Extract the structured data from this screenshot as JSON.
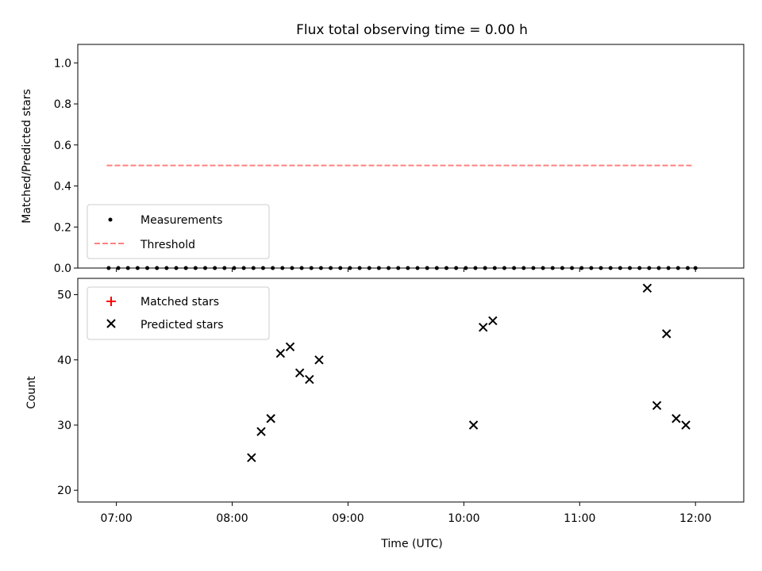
{
  "chart_data": [
    {
      "type": "scatter",
      "title": "Flux total observing time = 0.00 h",
      "xlabel": "",
      "ylabel": "Matched/Predicted stars",
      "xlim": [
        "06:40",
        "12:25"
      ],
      "ylim": [
        0,
        1.09
      ],
      "yticks": [
        0.0,
        0.2,
        0.4,
        0.6,
        0.8,
        1.0
      ],
      "yticklabels": [
        "0.0",
        "0.2",
        "0.4",
        "0.6",
        "0.8",
        "1.0"
      ],
      "grid": false,
      "legend_position": "lower-left",
      "colors": {
        "measurements": "#000000",
        "threshold": "#ff8080"
      },
      "series": [
        {
          "name": "Measurements",
          "marker": "dot",
          "x": [
            "06:56",
            "07:01",
            "07:06",
            "07:11",
            "07:16",
            "07:21",
            "07:26",
            "07:31",
            "07:36",
            "07:41",
            "07:46",
            "07:51",
            "07:56",
            "08:01",
            "08:06",
            "08:11",
            "08:16",
            "08:21",
            "08:26",
            "08:31",
            "08:36",
            "08:41",
            "08:46",
            "08:51",
            "08:56",
            "09:01",
            "09:06",
            "09:11",
            "09:16",
            "09:21",
            "09:26",
            "09:31",
            "09:36",
            "09:41",
            "09:46",
            "09:51",
            "09:56",
            "10:01",
            "10:06",
            "10:11",
            "10:16",
            "10:21",
            "10:26",
            "10:31",
            "10:36",
            "10:41",
            "10:46",
            "10:51",
            "10:56",
            "11:01",
            "11:06",
            "11:11",
            "11:16",
            "11:21",
            "11:26",
            "11:31",
            "11:36",
            "11:41",
            "11:46",
            "11:51",
            "11:56",
            "12:00"
          ],
          "values": [
            0,
            0,
            0,
            0,
            0,
            0,
            0,
            0,
            0,
            0,
            0,
            0,
            0,
            0,
            0,
            0,
            0,
            0,
            0,
            0,
            0,
            0,
            0,
            0,
            0,
            0,
            0,
            0,
            0,
            0,
            0,
            0,
            0,
            0,
            0,
            0,
            0,
            0,
            0,
            0,
            0,
            0,
            0,
            0,
            0,
            0,
            0,
            0,
            0,
            0,
            0,
            0,
            0,
            0,
            0,
            0,
            0,
            0,
            0,
            0,
            0,
            0
          ]
        },
        {
          "name": "Threshold",
          "line": "dashed",
          "x": [
            "06:55",
            "11:58"
          ],
          "values": [
            0.5,
            0.5
          ]
        }
      ]
    },
    {
      "type": "scatter",
      "title": "",
      "xlabel": "Time (UTC)",
      "ylabel": "Count",
      "xlim": [
        "06:40",
        "12:25"
      ],
      "ylim": [
        18.2,
        52.5
      ],
      "xticks": [
        "07:00",
        "08:00",
        "09:00",
        "10:00",
        "11:00",
        "12:00"
      ],
      "yticks": [
        20,
        30,
        40,
        50
      ],
      "yticklabels": [
        "20",
        "30",
        "40",
        "50"
      ],
      "grid": false,
      "legend_position": "upper-left",
      "colors": {
        "matched": "#ff0000",
        "predicted": "#000000"
      },
      "series": [
        {
          "name": "Matched stars",
          "marker": "plus",
          "x": [],
          "values": []
        },
        {
          "name": "Predicted stars",
          "marker": "x",
          "x": [
            "08:10",
            "08:15",
            "08:20",
            "08:25",
            "08:30",
            "08:35",
            "08:40",
            "08:45",
            "10:05",
            "10:10",
            "10:15",
            "11:35",
            "11:40",
            "11:45",
            "11:50",
            "11:55"
          ],
          "values": [
            25,
            29,
            31,
            41,
            42,
            38,
            37,
            40,
            30,
            45,
            46,
            51,
            33,
            44,
            31,
            30
          ]
        }
      ]
    }
  ]
}
